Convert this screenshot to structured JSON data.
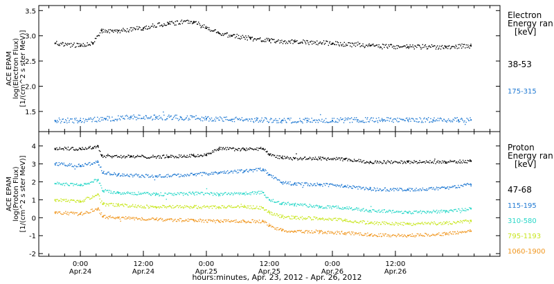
{
  "chart_data": [
    {
      "type": "scatter",
      "panel": "electron",
      "ylabel_lines": [
        "ACE EPAM",
        "log(Electron Flux)",
        "[1/(cm^2 s ster MeV)]"
      ],
      "ylim": [
        1.1,
        3.6
      ],
      "yticks": [
        1.5,
        2.0,
        2.5,
        3.0,
        3.5
      ],
      "ytick_labels": [
        "1.5",
        "2.0",
        "2.5",
        "3.0",
        "3.5"
      ],
      "legend_title": [
        "Electron",
        "Energy ran",
        "[keV]"
      ],
      "series": [
        {
          "name": "38-53",
          "color": "#000000",
          "x": [
            -0.2,
            0.0,
            0.1,
            0.17,
            0.3,
            0.5,
            0.7,
            0.9,
            1.0,
            1.1,
            1.2,
            1.35,
            1.5,
            1.7,
            2.0,
            2.3,
            2.6,
            2.9,
            3.1
          ],
          "y": [
            2.85,
            2.8,
            2.85,
            3.1,
            3.1,
            3.15,
            3.25,
            3.28,
            3.15,
            3.05,
            3.0,
            2.95,
            2.9,
            2.88,
            2.85,
            2.8,
            2.78,
            2.78,
            2.8
          ]
        },
        {
          "name": "175-315",
          "color": "#1e78d2",
          "x": [
            -0.2,
            0.0,
            0.2,
            0.4,
            0.6,
            0.8,
            1.0,
            1.2,
            1.4,
            1.6,
            1.8,
            2.0,
            2.2,
            2.4,
            2.6,
            2.8,
            3.0,
            3.1
          ],
          "y": [
            1.32,
            1.32,
            1.35,
            1.38,
            1.38,
            1.38,
            1.36,
            1.34,
            1.33,
            1.32,
            1.32,
            1.32,
            1.33,
            1.33,
            1.33,
            1.33,
            1.33,
            1.33
          ]
        }
      ]
    },
    {
      "type": "scatter",
      "panel": "proton",
      "ylabel_lines": [
        "ACE EPAM",
        "log(Proton Flux)",
        "[1/(cm^2 s ster MeV)]"
      ],
      "ylim": [
        -2.15,
        4.8
      ],
      "yticks": [
        -2,
        -1,
        0,
        1,
        2,
        3,
        4
      ],
      "ytick_labels": [
        "-2",
        "-1",
        "0",
        "1",
        "2",
        "3",
        "4"
      ],
      "legend_title": [
        "Proton",
        "Energy ran",
        "[keV]"
      ],
      "xlabel": "hours:minutes, Apr. 23, 2012 - Apr. 26, 2012",
      "xlim": [
        -0.33,
        3.33
      ],
      "xticks": [
        0.0,
        0.5,
        1.0,
        1.5,
        2.0,
        2.5
      ],
      "xtick_labels": [
        [
          "0:00",
          "Apr.24"
        ],
        [
          "12:00",
          "Apr.24"
        ],
        [
          "0:00",
          "Apr.25"
        ],
        [
          "12:00",
          "Apr.25"
        ],
        [
          "0:00",
          "Apr.26"
        ],
        [
          "12:00",
          "Apr.26"
        ]
      ],
      "series": [
        {
          "name": "47-68",
          "color": "#000000",
          "x": [
            -0.2,
            0.0,
            0.1,
            0.14,
            0.17,
            0.4,
            0.7,
            0.9,
            1.0,
            1.1,
            1.3,
            1.45,
            1.5,
            1.6,
            1.7,
            1.9,
            2.1,
            2.3,
            2.6,
            2.9,
            3.1
          ],
          "y": [
            3.85,
            3.85,
            3.9,
            4.0,
            3.45,
            3.4,
            3.4,
            3.45,
            3.5,
            3.85,
            3.8,
            3.85,
            3.5,
            3.35,
            3.3,
            3.3,
            3.25,
            3.1,
            3.1,
            3.1,
            3.15
          ]
        },
        {
          "name": "115-195",
          "color": "#1e78d2",
          "x": [
            -0.2,
            0.0,
            0.14,
            0.18,
            0.3,
            0.6,
            0.9,
            1.1,
            1.3,
            1.45,
            1.5,
            1.6,
            1.7,
            1.9,
            2.1,
            2.3,
            2.6,
            2.9,
            3.1
          ],
          "y": [
            3.0,
            2.9,
            3.1,
            2.5,
            2.4,
            2.3,
            2.4,
            2.5,
            2.6,
            2.7,
            2.4,
            1.95,
            1.9,
            1.85,
            1.75,
            1.6,
            1.55,
            1.65,
            1.85
          ]
        },
        {
          "name": "310-580",
          "color": "#28d7c8",
          "x": [
            -0.2,
            0.0,
            0.14,
            0.18,
            0.3,
            0.6,
            0.9,
            1.1,
            1.3,
            1.45,
            1.5,
            1.6,
            1.7,
            1.9,
            2.1,
            2.3,
            2.6,
            2.9,
            3.1
          ],
          "y": [
            1.9,
            1.8,
            2.1,
            1.5,
            1.4,
            1.3,
            1.35,
            1.3,
            1.35,
            1.4,
            1.0,
            0.8,
            0.75,
            0.6,
            0.55,
            0.4,
            0.3,
            0.35,
            0.5
          ]
        },
        {
          "name": "795-1193",
          "color": "#c8e61e",
          "x": [
            -0.2,
            0.0,
            0.14,
            0.18,
            0.3,
            0.6,
            0.9,
            1.1,
            1.3,
            1.45,
            1.5,
            1.6,
            1.7,
            1.9,
            2.1,
            2.3,
            2.6,
            2.9,
            3.1
          ],
          "y": [
            1.0,
            0.9,
            1.3,
            0.75,
            0.7,
            0.6,
            0.6,
            0.6,
            0.6,
            0.55,
            0.3,
            0.05,
            0.0,
            -0.05,
            -0.15,
            -0.3,
            -0.35,
            -0.3,
            -0.2
          ]
        },
        {
          "name": "1060-1900",
          "color": "#f0961e",
          "x": [
            -0.2,
            0.0,
            0.14,
            0.18,
            0.3,
            0.6,
            0.9,
            1.1,
            1.3,
            1.45,
            1.5,
            1.6,
            1.7,
            1.9,
            2.1,
            2.3,
            2.6,
            2.9,
            3.1
          ],
          "y": [
            0.3,
            0.2,
            0.5,
            0.05,
            0.0,
            -0.1,
            -0.15,
            -0.2,
            -0.2,
            -0.2,
            -0.45,
            -0.7,
            -0.75,
            -0.8,
            -0.85,
            -0.95,
            -1.0,
            -0.9,
            -0.75
          ]
        }
      ]
    }
  ]
}
